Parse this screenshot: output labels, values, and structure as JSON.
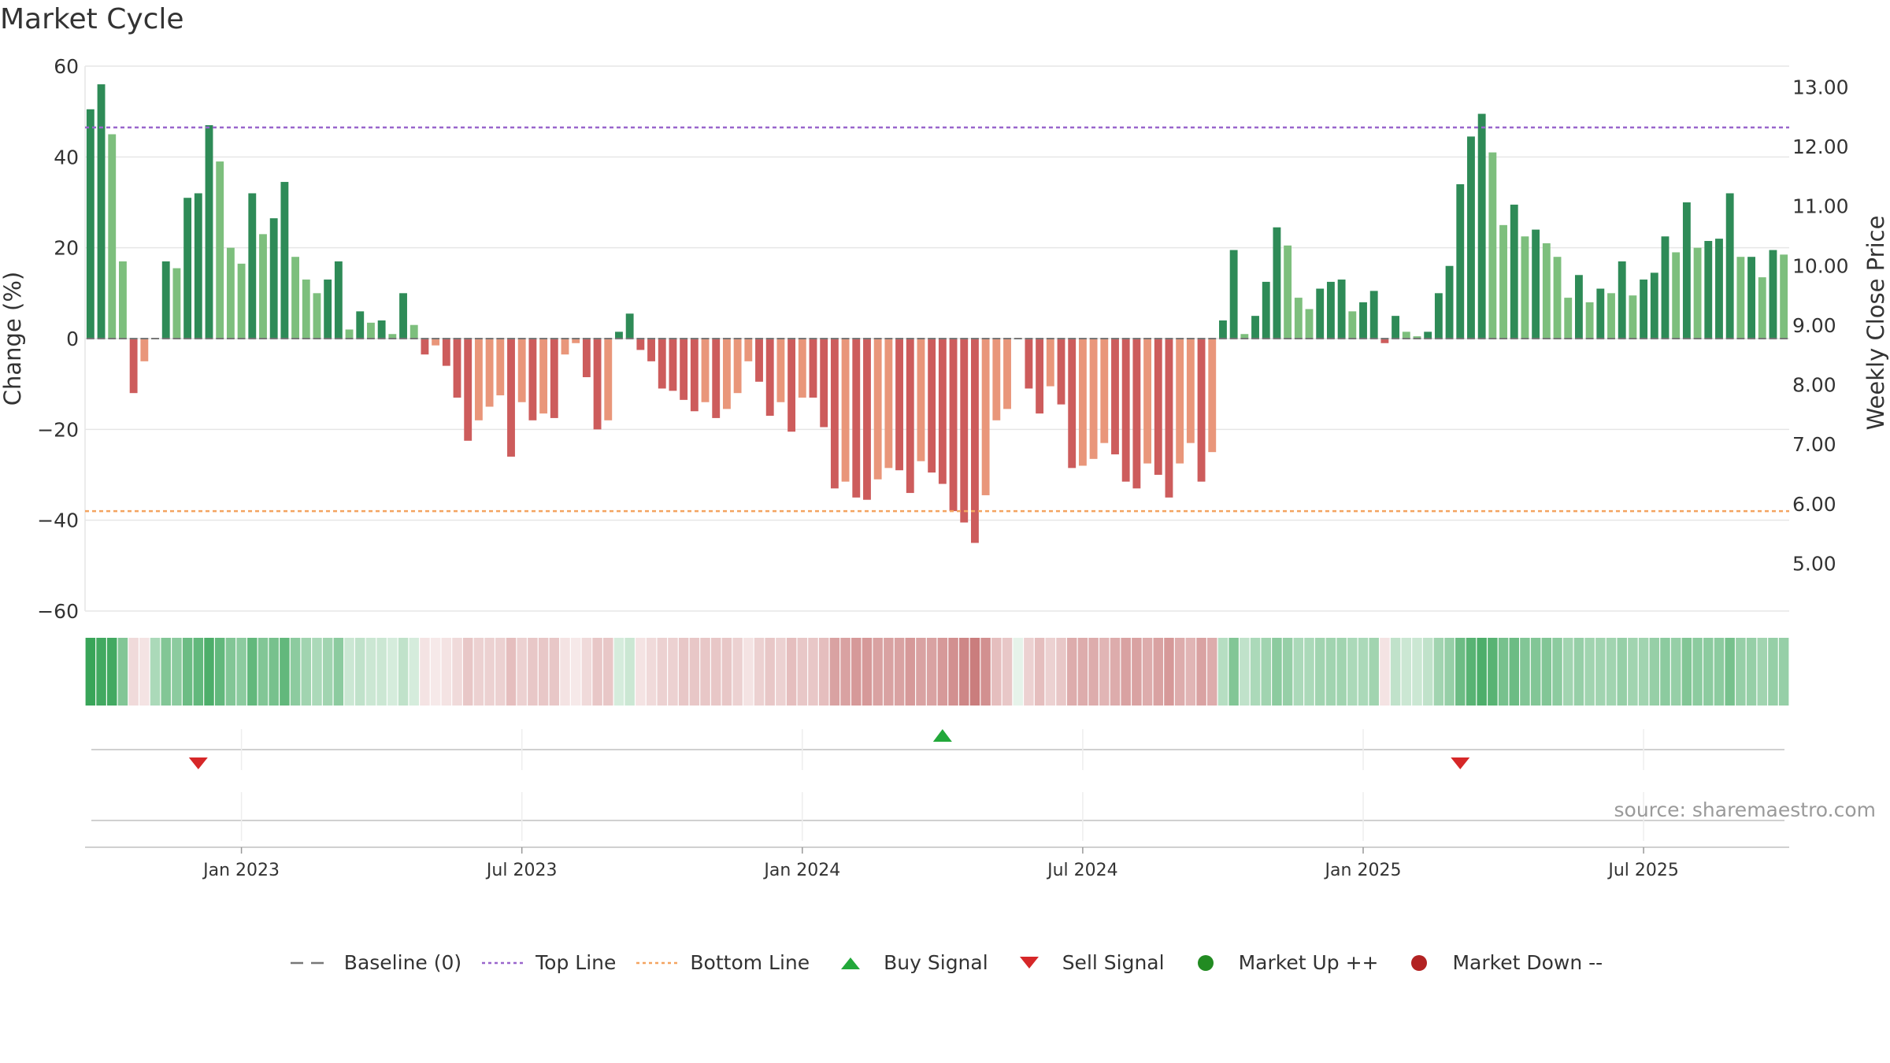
{
  "title": "Market Cycle",
  "source": "source: sharemaestro.com",
  "colors": {
    "up_strong": "#2e8b57",
    "up_light": "#7dbf7d",
    "down_strong": "#cd5c5c",
    "down_light": "#e9967a",
    "top_line": "#9966cc",
    "bottom_line": "#f4a460",
    "buy": "#22a83a",
    "sell": "#d62728",
    "market_up": "#228b22",
    "market_down": "#b22222",
    "grid": "#e6e6e6",
    "baseline": "#777777"
  },
  "legend": [
    {
      "label": "Baseline (0)",
      "icon": "dash-line-icon"
    },
    {
      "label": "Top Line",
      "icon": "dotted-purple-line-icon"
    },
    {
      "label": "Bottom Line",
      "icon": "dotted-orange-line-icon"
    },
    {
      "label": "Buy Signal",
      "icon": "triangle-up-icon"
    },
    {
      "label": "Sell Signal",
      "icon": "triangle-down-icon"
    },
    {
      "label": "Market Up ++",
      "icon": "green-dot-icon"
    },
    {
      "label": "Market Down --",
      "icon": "red-dot-icon"
    }
  ],
  "chart_data": {
    "type": "bar",
    "title": "Market Cycle",
    "ylabel": "Change (%)",
    "y2label": "Weekly Close Price",
    "ylim": [
      -60,
      60
    ],
    "y_ticks": [
      "60",
      "40",
      "20",
      "0",
      "−20",
      "−40",
      "−60"
    ],
    "y2lim": [
      4.2,
      13.35
    ],
    "y2_ticks": [
      "13.00",
      "12.00",
      "11.00",
      "10.00",
      "9.00",
      "8.00",
      "7.00",
      "6.00",
      "5.00"
    ],
    "top_line": 46.5,
    "bottom_line": -38,
    "grid": true,
    "legend_position": "bottom",
    "x_ticks": [
      "Jan 2023",
      "Jul 2023",
      "Jan 2024",
      "Jul 2024",
      "Jan 2025",
      "Jul 2025"
    ],
    "x_tick_weeks": [
      14,
      40,
      66,
      92,
      118,
      144
    ],
    "change_pct": [
      50.5,
      56,
      45,
      17,
      -12,
      -5,
      0,
      17,
      15.5,
      31,
      32,
      47,
      39,
      20,
      16.5,
      32,
      23,
      26.5,
      34.5,
      18,
      13,
      10,
      13,
      17,
      2,
      6,
      3.5,
      4,
      1,
      10,
      3,
      -3.5,
      -1.5,
      -6,
      -13,
      -22.5,
      -18,
      -15,
      -12.5,
      -26,
      -14,
      -18,
      -16.5,
      -17.5,
      -3.5,
      -1,
      -8.5,
      -20,
      -18,
      1.5,
      5.5,
      -2.5,
      -5,
      -11,
      -11.5,
      -13.5,
      -16,
      -14,
      -17.5,
      -15.5,
      -12,
      -5,
      -9.5,
      -17,
      -14,
      -20.5,
      -13,
      -13,
      -19.5,
      -33,
      -31.5,
      -35,
      -35.5,
      -31,
      -28.5,
      -29,
      -34,
      -27,
      -29.5,
      -32,
      -38,
      -40.5,
      -45,
      -34.5,
      -18,
      -15.5,
      0,
      -11,
      -16.5,
      -10.5,
      -14.5,
      -28.5,
      -28,
      -26.5,
      -23,
      -25.5,
      -31.5,
      -33,
      -27.5,
      -30,
      -35,
      -27.5,
      -23,
      -31.5,
      -25,
      4,
      19.5,
      1,
      5,
      12.5,
      24.5,
      20.5,
      9,
      6.5,
      11,
      12.5,
      13,
      6,
      8,
      10.5,
      -1,
      5,
      1.5,
      0.5,
      1.5,
      10,
      16,
      34,
      44.5,
      49.5,
      41,
      25,
      29.5,
      22.5,
      24,
      21,
      18,
      9,
      14,
      8,
      11,
      10,
      17,
      9.5,
      13,
      14.5,
      22.5,
      19,
      30,
      20,
      21.5,
      22,
      32,
      18,
      18,
      13.5,
      19.5,
      18.5
    ],
    "cycle_strength": [
      0.95,
      0.9,
      0.9,
      0.6,
      0.2,
      0.15,
      0.4,
      0.6,
      0.55,
      0.7,
      0.75,
      0.85,
      0.75,
      0.6,
      0.55,
      0.75,
      0.6,
      0.65,
      0.75,
      0.55,
      0.45,
      0.4,
      0.45,
      0.55,
      0.25,
      0.3,
      0.25,
      0.25,
      0.2,
      0.3,
      0.2,
      0.15,
      0.1,
      0.15,
      0.2,
      0.3,
      0.25,
      0.25,
      0.25,
      0.35,
      0.25,
      0.3,
      0.3,
      0.3,
      0.15,
      0.1,
      0.2,
      0.3,
      0.3,
      0.2,
      0.25,
      0.15,
      0.2,
      0.25,
      0.25,
      0.3,
      0.3,
      0.3,
      0.3,
      0.3,
      0.25,
      0.15,
      0.25,
      0.3,
      0.25,
      0.35,
      0.3,
      0.3,
      0.35,
      0.5,
      0.5,
      0.55,
      0.55,
      0.5,
      0.5,
      0.5,
      0.55,
      0.5,
      0.5,
      0.55,
      0.6,
      0.65,
      0.7,
      0.6,
      0.35,
      0.3,
      0.1,
      0.25,
      0.35,
      0.25,
      0.3,
      0.45,
      0.45,
      0.45,
      0.4,
      0.45,
      0.5,
      0.5,
      0.45,
      0.5,
      0.55,
      0.45,
      0.4,
      0.5,
      0.45,
      0.35,
      0.6,
      0.3,
      0.4,
      0.45,
      0.55,
      0.5,
      0.4,
      0.4,
      0.45,
      0.45,
      0.45,
      0.4,
      0.4,
      0.45,
      0.15,
      0.3,
      0.25,
      0.25,
      0.3,
      0.45,
      0.5,
      0.7,
      0.8,
      0.85,
      0.8,
      0.65,
      0.7,
      0.6,
      0.6,
      0.6,
      0.55,
      0.45,
      0.5,
      0.45,
      0.45,
      0.45,
      0.5,
      0.45,
      0.45,
      0.5,
      0.55,
      0.5,
      0.6,
      0.55,
      0.55,
      0.55,
      0.65,
      0.5,
      0.5,
      0.45,
      0.5,
      0.5
    ],
    "buy_signals": [
      79
    ],
    "sell_signals": [
      10,
      127
    ],
    "market_up": [],
    "market_down": []
  }
}
